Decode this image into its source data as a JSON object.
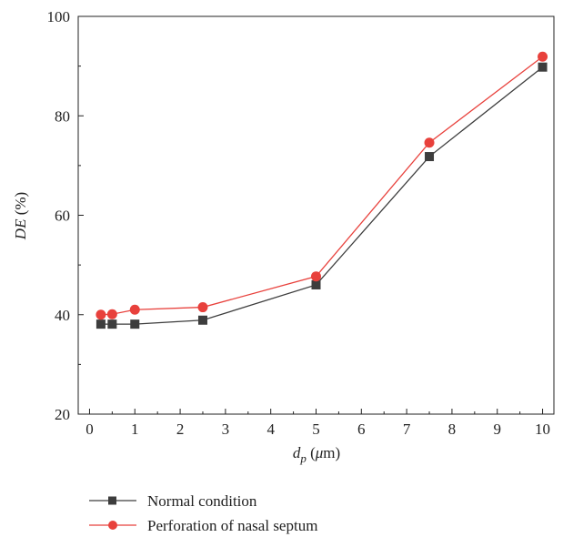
{
  "chart_data": {
    "type": "line",
    "xlabel": {
      "var": "d",
      "sub": "p",
      "unit": " (μm)",
      "unit_prefix": " (",
      "unit_greek": "μ",
      "unit_rest": "m)"
    },
    "ylabel": {
      "var": "DE",
      "unit": " (%)"
    },
    "xlim": [
      -0.25,
      10.25
    ],
    "ylim": [
      20,
      100
    ],
    "xticks": [
      "0",
      "1",
      "2",
      "3",
      "4",
      "5",
      "6",
      "7",
      "8",
      "9",
      "10"
    ],
    "yticks": [
      "20",
      "40",
      "60",
      "80",
      "100"
    ],
    "grid": false,
    "legend_position": "bottom",
    "series": [
      {
        "name": "Normal condition",
        "marker": "square",
        "color": "#3d3d3d",
        "line_color": "#3d3d3d",
        "x": [
          0.25,
          0.5,
          1,
          2.5,
          5,
          7.5,
          10
        ],
        "y": [
          38.1,
          38.1,
          38.1,
          38.9,
          46.0,
          71.8,
          89.8
        ]
      },
      {
        "name": "Perforation of nasal septum",
        "marker": "circle",
        "color": "#e8413c",
        "line_color": "#e8413c",
        "x": [
          0.25,
          0.5,
          1,
          2.5,
          5,
          7.5,
          10
        ],
        "y": [
          40.0,
          40.1,
          41.0,
          41.5,
          47.7,
          74.6,
          91.9
        ]
      }
    ]
  }
}
